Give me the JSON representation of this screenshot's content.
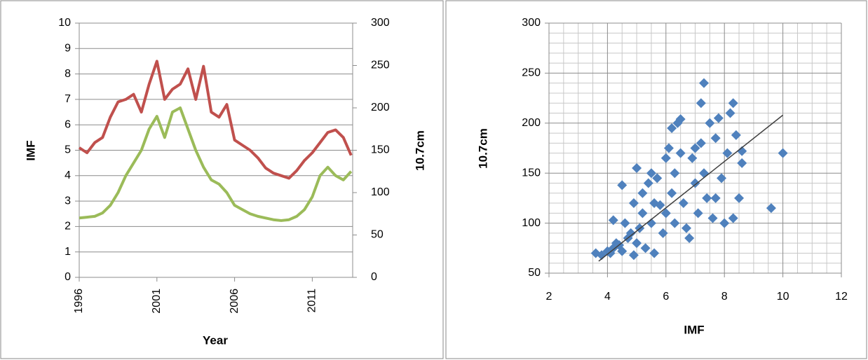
{
  "chart_data": [
    {
      "type": "line",
      "xlabel": "Year",
      "ylabel": "IMF",
      "y2label": "10.7cm",
      "x": [
        1996,
        1996.5,
        1997,
        1997.5,
        1998,
        1998.5,
        1999,
        1999.5,
        2000,
        2000.5,
        2001,
        2001.5,
        2002,
        2002.5,
        2003,
        2003.5,
        2004,
        2004.5,
        2005,
        2005.5,
        2006,
        2006.5,
        2007,
        2007.5,
        2008,
        2008.5,
        2009,
        2009.5,
        2010,
        2010.5,
        2011,
        2011.5,
        2012,
        2012.5,
        2013,
        2013.5
      ],
      "series": [
        {
          "name": "IMF",
          "color": "#c0504d",
          "values": [
            5.1,
            4.9,
            5.3,
            5.5,
            6.3,
            6.9,
            7.0,
            7.2,
            6.5,
            7.6,
            8.5,
            7.0,
            7.4,
            7.6,
            8.2,
            7.0,
            8.3,
            6.5,
            6.3,
            6.8,
            5.4,
            5.2,
            5.0,
            4.7,
            4.3,
            4.1,
            4.0,
            3.9,
            4.2,
            4.6,
            4.9,
            5.3,
            5.7,
            5.8,
            5.5,
            4.8
          ]
        },
        {
          "name": "10.7cm",
          "color": "#9bbb59",
          "axis": "y2",
          "values": [
            70,
            71,
            72,
            76,
            85,
            100,
            120,
            135,
            150,
            175,
            190,
            165,
            195,
            200,
            175,
            150,
            130,
            115,
            110,
            100,
            85,
            80,
            75,
            72,
            70,
            68,
            67,
            68,
            72,
            80,
            95,
            120,
            130,
            120,
            115,
            125
          ]
        }
      ],
      "xlim": [
        1996,
        2013.6
      ],
      "xticks": [
        1996,
        2001,
        2006,
        2011
      ],
      "ylim": [
        0,
        10
      ],
      "yticks": [
        0,
        1,
        2,
        3,
        4,
        5,
        6,
        7,
        8,
        9,
        10
      ],
      "y2lim": [
        0,
        300
      ],
      "y2ticks": [
        0,
        50,
        100,
        150,
        200,
        250,
        300
      ],
      "grid": true
    },
    {
      "type": "scatter",
      "xlabel": "IMF",
      "ylabel": "10.7cm",
      "series": [
        {
          "color": "#4f81bd",
          "x": [
            3.6,
            3.8,
            4.0,
            4.1,
            4.2,
            4.3,
            4.4,
            4.5,
            4.2,
            4.5,
            4.6,
            4.7,
            4.8,
            4.9,
            5.0,
            5.0,
            5.1,
            5.2,
            5.2,
            5.3,
            5.4,
            5.5,
            5.5,
            5.6,
            5.7,
            5.8,
            5.9,
            6.0,
            6.0,
            6.1,
            6.2,
            6.2,
            6.3,
            6.4,
            6.5,
            6.5,
            6.6,
            6.7,
            6.8,
            6.9,
            7.0,
            7.0,
            7.1,
            7.2,
            7.2,
            7.3,
            7.3,
            7.4,
            7.5,
            7.6,
            7.7,
            7.8,
            7.9,
            8.0,
            8.1,
            8.2,
            8.3,
            8.3,
            8.4,
            8.5,
            8.6,
            8.6,
            9.6,
            10.0,
            4.9,
            5.6,
            6.3,
            7.7
          ],
          "values": [
            70,
            68,
            72,
            70,
            75,
            80,
            78,
            72,
            103,
            138,
            100,
            85,
            90,
            120,
            155,
            80,
            95,
            110,
            130,
            75,
            140,
            150,
            100,
            120,
            145,
            118,
            90,
            165,
            110,
            175,
            195,
            130,
            150,
            200,
            204,
            170,
            120,
            95,
            85,
            165,
            140,
            175,
            110,
            220,
            180,
            240,
            150,
            125,
            200,
            105,
            185,
            205,
            145,
            100,
            170,
            210,
            220,
            105,
            188,
            125,
            172,
            160,
            115,
            170,
            68,
            70,
            100,
            125
          ]
        }
      ],
      "trendline": {
        "color": "#404040",
        "x": [
          3.7,
          10
        ],
        "values": [
          62,
          208
        ]
      },
      "xlim": [
        2,
        12
      ],
      "xticks": [
        2,
        4,
        6,
        8,
        10,
        12
      ],
      "ylim": [
        50,
        300
      ],
      "yticks": [
        50,
        100,
        150,
        200,
        250,
        300
      ],
      "x_minor_grid": [
        2.5,
        3,
        3.5,
        4.5,
        5,
        5.5,
        6.5,
        7,
        7.5,
        8.5,
        9,
        9.5,
        10.5,
        11,
        11.5
      ],
      "y_minor_grid": [
        60,
        70,
        80,
        90,
        110,
        120,
        130,
        140,
        160,
        170,
        180,
        190,
        210,
        220,
        230,
        240,
        260,
        270,
        280,
        290
      ],
      "grid": true
    }
  ]
}
